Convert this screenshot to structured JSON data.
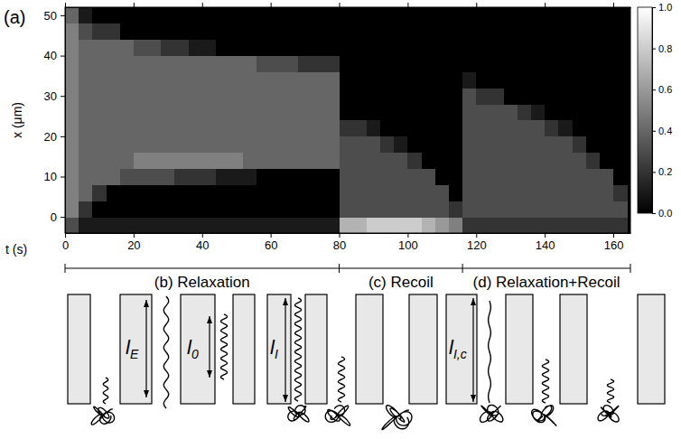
{
  "chart_data": {
    "type": "heatmap",
    "panel": "(a)",
    "x_label": "t (s)",
    "y_label": "x (μm)",
    "x": [
      0,
      4,
      8,
      12,
      16,
      20,
      24,
      28,
      32,
      36,
      40,
      44,
      48,
      52,
      56,
      60,
      64,
      68,
      72,
      76,
      80,
      84,
      88,
      92,
      96,
      100,
      104,
      108,
      112,
      116,
      120,
      124,
      128,
      132,
      136,
      140,
      144,
      148,
      152,
      156,
      160,
      164
    ],
    "y": [
      -4,
      0,
      4,
      8,
      12,
      16,
      20,
      24,
      28,
      32,
      36,
      40,
      44,
      48,
      52
    ],
    "cells": [
      [
        0.3,
        0.5,
        0.5,
        0.5,
        0.5,
        0.5,
        0.5,
        0.5,
        0.5,
        0.5,
        0.5,
        0.5,
        0.5,
        0.4
      ],
      [
        0.1,
        0.2,
        0.4,
        0.4,
        0.4,
        0.4,
        0.4,
        0.4,
        0.4,
        0.4,
        0.4,
        0.4,
        0.3,
        0.1
      ],
      [
        0.1,
        0,
        0.2,
        0.4,
        0.4,
        0.4,
        0.4,
        0.4,
        0.4,
        0.4,
        0.4,
        0.4,
        0.2,
        0
      ],
      [
        0.1,
        0,
        0,
        0.4,
        0.4,
        0.4,
        0.4,
        0.4,
        0.4,
        0.4,
        0.4,
        0.4,
        0.2,
        0
      ],
      [
        0.1,
        0,
        0,
        0.3,
        0.4,
        0.4,
        0.4,
        0.4,
        0.4,
        0.4,
        0.4,
        0.4,
        0,
        0
      ],
      [
        0.1,
        0,
        0,
        0.3,
        0.5,
        0.4,
        0.4,
        0.4,
        0.4,
        0.4,
        0.4,
        0.3,
        0,
        0
      ],
      [
        0.1,
        0,
        0,
        0.3,
        0.5,
        0.4,
        0.4,
        0.4,
        0.4,
        0.4,
        0.4,
        0.3,
        0,
        0
      ],
      [
        0.1,
        0,
        0,
        0.3,
        0.5,
        0.4,
        0.4,
        0.4,
        0.4,
        0.4,
        0.4,
        0.2,
        0,
        0
      ],
      [
        0.1,
        0,
        0,
        0.2,
        0.5,
        0.4,
        0.4,
        0.4,
        0.4,
        0.4,
        0.4,
        0.2,
        0,
        0
      ],
      [
        0.1,
        0,
        0,
        0.2,
        0.5,
        0.4,
        0.4,
        0.4,
        0.4,
        0.4,
        0.4,
        0.1,
        0,
        0
      ],
      [
        0.1,
        0,
        0,
        0.2,
        0.5,
        0.4,
        0.4,
        0.4,
        0.4,
        0.4,
        0.4,
        0.1,
        0,
        0
      ],
      [
        0.1,
        0,
        0,
        0.1,
        0.5,
        0.4,
        0.4,
        0.4,
        0.4,
        0.4,
        0.4,
        0,
        0,
        0
      ],
      [
        0.1,
        0,
        0,
        0.1,
        0.5,
        0.4,
        0.4,
        0.4,
        0.4,
        0.4,
        0.4,
        0,
        0,
        0
      ],
      [
        0.1,
        0,
        0,
        0.1,
        0.4,
        0.4,
        0.4,
        0.4,
        0.4,
        0.4,
        0.4,
        0,
        0,
        0
      ],
      [
        0.1,
        0,
        0,
        0,
        0.4,
        0.4,
        0.4,
        0.4,
        0.4,
        0.4,
        0.3,
        0,
        0,
        0
      ],
      [
        0.1,
        0,
        0,
        0,
        0.4,
        0.4,
        0.4,
        0.4,
        0.4,
        0.4,
        0.3,
        0,
        0,
        0
      ],
      [
        0.1,
        0,
        0,
        0,
        0.4,
        0.4,
        0.4,
        0.4,
        0.4,
        0.4,
        0.3,
        0,
        0,
        0
      ],
      [
        0.1,
        0,
        0,
        0,
        0.4,
        0.4,
        0.4,
        0.4,
        0.4,
        0.4,
        0.2,
        0,
        0,
        0
      ],
      [
        0.1,
        0,
        0,
        0,
        0.4,
        0.4,
        0.4,
        0.4,
        0.4,
        0.4,
        0.2,
        0,
        0,
        0
      ],
      [
        0.1,
        0,
        0,
        0,
        0.4,
        0.4,
        0.4,
        0.4,
        0.4,
        0.4,
        0.2,
        0,
        0,
        0
      ],
      [
        0.7,
        0.3,
        0.3,
        0.3,
        0.3,
        0.3,
        0.2,
        0,
        0,
        0,
        0,
        0,
        0,
        0
      ],
      [
        0.7,
        0.3,
        0.3,
        0.3,
        0.3,
        0.3,
        0.2,
        0,
        0,
        0,
        0,
        0,
        0,
        0
      ],
      [
        0.8,
        0.3,
        0.3,
        0.3,
        0.3,
        0.3,
        0.1,
        0,
        0,
        0,
        0,
        0,
        0,
        0
      ],
      [
        0.8,
        0.3,
        0.3,
        0.3,
        0.3,
        0.2,
        0,
        0,
        0,
        0,
        0,
        0,
        0,
        0
      ],
      [
        0.8,
        0.3,
        0.3,
        0.3,
        0.3,
        0.1,
        0,
        0,
        0,
        0,
        0,
        0,
        0,
        0
      ],
      [
        0.8,
        0.3,
        0.3,
        0.3,
        0.2,
        0,
        0,
        0,
        0,
        0,
        0,
        0,
        0,
        0
      ],
      [
        0.7,
        0.3,
        0.3,
        0.3,
        0,
        0,
        0,
        0,
        0,
        0,
        0,
        0,
        0,
        0
      ],
      [
        0.6,
        0.3,
        0.3,
        0,
        0,
        0,
        0,
        0,
        0,
        0,
        0,
        0,
        0,
        0
      ],
      [
        0.5,
        0.2,
        0,
        0,
        0,
        0,
        0,
        0,
        0,
        0,
        0,
        0,
        0,
        0
      ],
      [
        0.2,
        0.3,
        0.3,
        0.3,
        0.3,
        0.3,
        0.3,
        0.3,
        0.3,
        0.1,
        0,
        0,
        0,
        0
      ],
      [
        0.2,
        0.3,
        0.3,
        0.3,
        0.3,
        0.3,
        0.3,
        0.3,
        0.2,
        0,
        0,
        0,
        0,
        0
      ],
      [
        0.2,
        0.3,
        0.3,
        0.3,
        0.3,
        0.3,
        0.3,
        0.3,
        0.2,
        0,
        0,
        0,
        0,
        0
      ],
      [
        0.2,
        0.3,
        0.3,
        0.3,
        0.3,
        0.3,
        0.3,
        0.3,
        0,
        0,
        0,
        0,
        0,
        0
      ],
      [
        0.2,
        0.3,
        0.3,
        0.3,
        0.3,
        0.3,
        0.3,
        0.2,
        0,
        0,
        0,
        0,
        0,
        0
      ],
      [
        0.2,
        0.3,
        0.3,
        0.3,
        0.3,
        0.3,
        0.3,
        0.1,
        0,
        0,
        0,
        0,
        0,
        0
      ],
      [
        0.2,
        0.3,
        0.3,
        0.3,
        0.3,
        0.3,
        0.2,
        0,
        0,
        0,
        0,
        0,
        0,
        0
      ],
      [
        0.2,
        0.3,
        0.3,
        0.3,
        0.3,
        0.3,
        0.1,
        0,
        0,
        0,
        0,
        0,
        0,
        0
      ],
      [
        0.2,
        0.3,
        0.3,
        0.3,
        0.3,
        0.2,
        0,
        0,
        0,
        0,
        0,
        0,
        0,
        0
      ],
      [
        0.2,
        0.3,
        0.3,
        0.3,
        0.2,
        0,
        0,
        0,
        0,
        0,
        0,
        0,
        0,
        0
      ],
      [
        0.2,
        0.3,
        0.3,
        0.3,
        0,
        0,
        0,
        0,
        0,
        0,
        0,
        0,
        0,
        0
      ],
      [
        0.2,
        0.3,
        0.2,
        0,
        0,
        0,
        0,
        0,
        0,
        0,
        0,
        0,
        0,
        0
      ]
    ],
    "xlim": [
      0,
      165
    ],
    "xticks": [
      0,
      20,
      40,
      60,
      80,
      100,
      120,
      140,
      160
    ],
    "ylim": [
      -4,
      52
    ],
    "yticks": [
      0,
      10,
      20,
      30,
      40,
      50
    ],
    "colorbar": {
      "range": [
        0,
        1
      ],
      "ticks": [
        {
          "value": 0,
          "label": "0.0"
        },
        {
          "value": 0.2,
          "label": "0.2"
        },
        {
          "value": 0.4,
          "label": "0.4"
        },
        {
          "value": 0.6,
          "label": "0.6"
        },
        {
          "value": 0.8,
          "label": "0.8"
        },
        {
          "value": 1,
          "label": "1.0"
        }
      ]
    },
    "phases": [
      {
        "label": "(b) Relaxation",
        "start": 0,
        "end": 80
      },
      {
        "label": "(c) Recoil",
        "start": 80,
        "end": 116
      },
      {
        "label": "(d) Relaxation+Recoil",
        "start": 116,
        "end": 165
      }
    ]
  },
  "schematic": {
    "panels": [
      {
        "labels": [
          {
            "text": "l",
            "sub": "E"
          },
          {
            "text": "l",
            "sub": "0"
          }
        ]
      },
      {
        "labels": [
          {
            "text": "l",
            "sub": "I"
          }
        ]
      },
      {
        "labels": [
          {
            "text": "l",
            "sub": "I,c"
          }
        ]
      }
    ]
  }
}
